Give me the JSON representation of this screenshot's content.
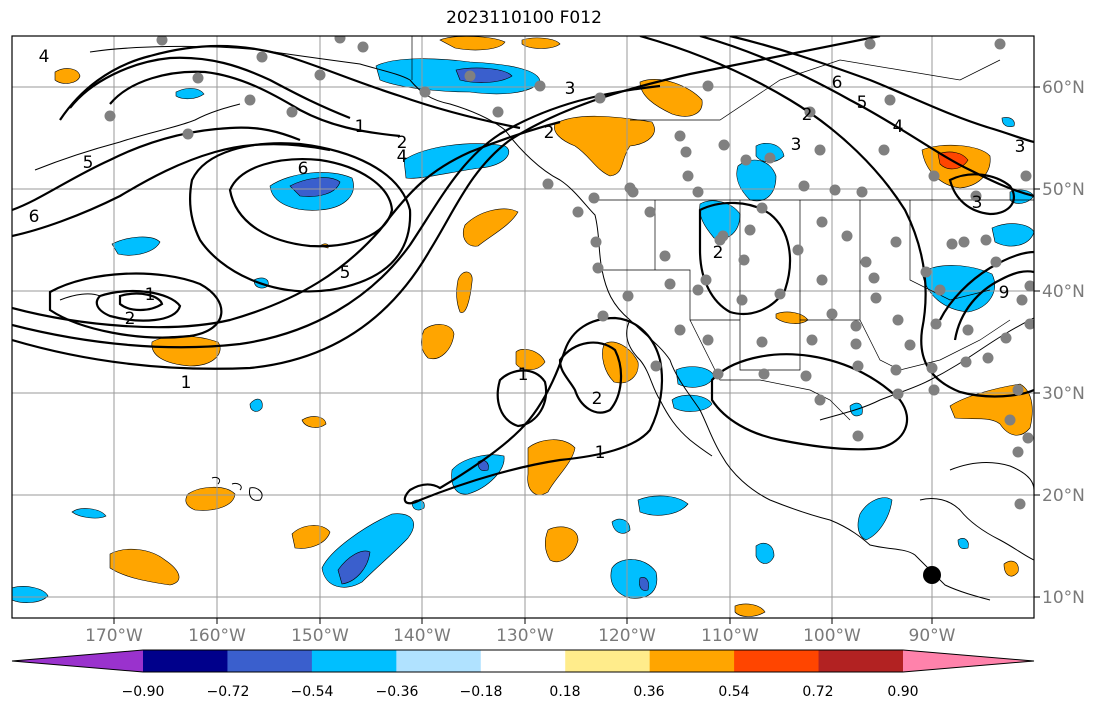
{
  "title": "2023110100 F012",
  "lon_labels": [
    "170°W",
    "160°W",
    "150°W",
    "140°W",
    "130°W",
    "120°W",
    "110°W",
    "100°W",
    "90°W"
  ],
  "lat_labels": [
    "60°N",
    "50°N",
    "40°N",
    "30°N",
    "20°N",
    "10°N"
  ],
  "colorbar": {
    "colors": [
      "#9a32cd",
      "#00008b",
      "#3a5fcd",
      "#00bfff",
      "#b0e2ff",
      "#ffffff",
      "#ffec8b",
      "#ffa500",
      "#ff4500",
      "#b22222",
      "#ff82ab"
    ],
    "tick_labels": [
      "−0.90",
      "−0.72",
      "−0.54",
      "−0.36",
      "−0.18",
      "0.18",
      "0.36",
      "0.54",
      "0.72",
      "0.90"
    ]
  },
  "contour_labels": [
    "4",
    "6",
    "5",
    "6",
    "1",
    "2",
    "4",
    "3",
    "2",
    "5",
    "1",
    "2",
    "1",
    "1",
    "2",
    "1",
    "2",
    "3",
    "2",
    "5",
    "4",
    "6",
    "3",
    "3",
    "9"
  ]
}
